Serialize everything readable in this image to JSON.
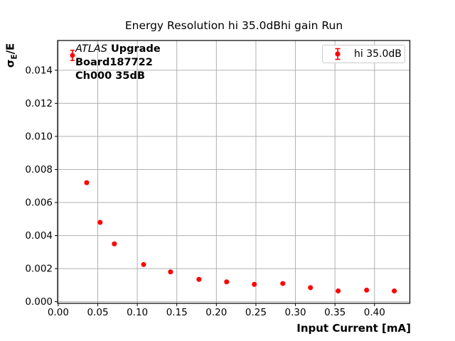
{
  "chart_data": {
    "type": "scatter",
    "title": "Energy Resolution hi 35.0dBhi gain Run",
    "xlabel": "Input Current [mA]",
    "ylabel": "σE/E",
    "ylabel_parts": {
      "base": "σ",
      "sub": "E",
      "rest": "/E"
    },
    "annotation": {
      "line1_italic": "ATLAS",
      "line1_bold": " Upgrade",
      "line2": "Board187722",
      "line3": "Ch000 35dB"
    },
    "legend": {
      "label": "hi 35.0dB",
      "position": "upper right"
    },
    "grid": true,
    "grid_color": "#b0b0b0",
    "axis_color": "#000000",
    "background": "#ffffff",
    "xlim": [
      -0.0008,
      0.4447
    ],
    "ylim": [
      -0.0001,
      0.0158
    ],
    "x_ticks": [
      0.0,
      0.05,
      0.1,
      0.15,
      0.2,
      0.25,
      0.3,
      0.35,
      0.4
    ],
    "x_tick_labels": [
      "0.00",
      "0.05",
      "0.10",
      "0.15",
      "0.20",
      "0.25",
      "0.30",
      "0.35",
      "0.40"
    ],
    "y_ticks": [
      0.0,
      0.002,
      0.004,
      0.006,
      0.008,
      0.01,
      0.012,
      0.014
    ],
    "y_tick_labels": [
      "0.000",
      "0.002",
      "0.004",
      "0.006",
      "0.008",
      "0.010",
      "0.012",
      "0.014"
    ],
    "series": [
      {
        "name": "hi 35.0dB",
        "color": "#ff0000",
        "marker": "circle-errorbar",
        "points": [
          {
            "x": 0.018,
            "y": 0.0149,
            "err": 0.00031
          },
          {
            "x": 0.036,
            "y": 0.0072,
            "err": 6e-05
          },
          {
            "x": 0.053,
            "y": 0.0048,
            "err": 6e-05
          },
          {
            "x": 0.071,
            "y": 0.0035,
            "err": 5e-05
          },
          {
            "x": 0.108,
            "y": 0.00225,
            "err": 5e-05
          },
          {
            "x": 0.142,
            "y": 0.0018,
            "err": 4e-05
          },
          {
            "x": 0.178,
            "y": 0.00135,
            "err": 4e-05
          },
          {
            "x": 0.213,
            "y": 0.0012,
            "err": 4e-05
          },
          {
            "x": 0.248,
            "y": 0.00105,
            "err": 4e-05
          },
          {
            "x": 0.284,
            "y": 0.0011,
            "err": 4e-05
          },
          {
            "x": 0.319,
            "y": 0.00085,
            "err": 3e-05
          },
          {
            "x": 0.354,
            "y": 0.00065,
            "err": 3e-05
          },
          {
            "x": 0.39,
            "y": 0.0007,
            "err": 3e-05
          },
          {
            "x": 0.425,
            "y": 0.00065,
            "err": 3e-05
          }
        ]
      }
    ]
  }
}
